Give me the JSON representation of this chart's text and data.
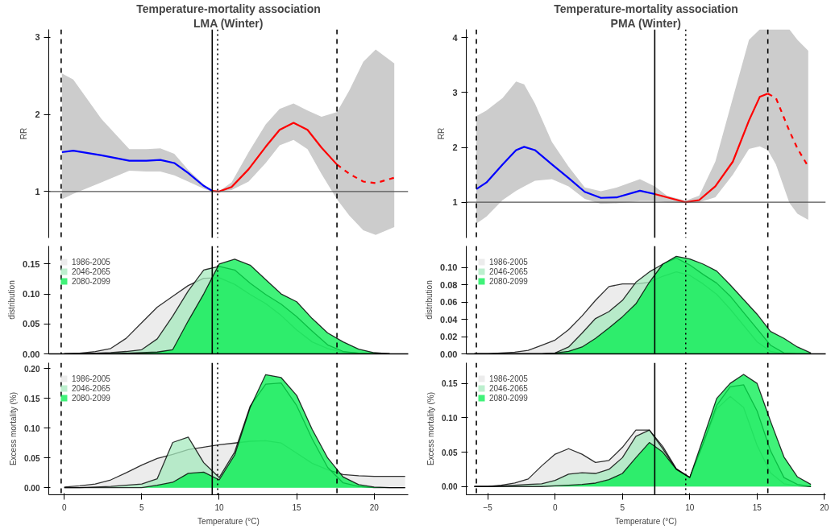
{
  "chart_data": [
    {
      "type": "line",
      "title": "Temperature-mortality association",
      "subtitle": "LMA (Winter)",
      "ylabel": "RR",
      "xlim": [
        -1,
        22.2
      ],
      "ylim": [
        0.4,
        3.1
      ],
      "yticks": [
        1,
        2,
        3
      ],
      "tick_labels": "y",
      "grid": false,
      "legend": false,
      "series": [
        {
          "color": "#0000ff",
          "line_style": "solid",
          "x": [
            -0.15,
            0.58,
            2.4,
            4.2,
            5.3,
            6.2,
            7.1,
            8.0,
            8.96,
            9.55
          ],
          "values": [
            1.51,
            1.53,
            1.47,
            1.4,
            1.4,
            1.41,
            1.37,
            1.24,
            1.08,
            1.01
          ],
          "lower": [
            0.9,
            0.97,
            1.12,
            1.27,
            1.26,
            1.26,
            1.21,
            1.13,
            1.04,
            1.0
          ],
          "upper": [
            2.53,
            2.45,
            1.94,
            1.55,
            1.55,
            1.56,
            1.49,
            1.28,
            1.1,
            1.0
          ]
        },
        {
          "color": "#ff0000",
          "line_style": "solid",
          "x": [
            9.55,
            9.96,
            10.8,
            11.9,
            13.0,
            13.9,
            14.8,
            15.7,
            16.6,
            17.6
          ],
          "values": [
            1.01,
            1.0,
            1.06,
            1.29,
            1.58,
            1.8,
            1.89,
            1.8,
            1.57,
            1.35
          ],
          "lower": [
            1.0,
            1.0,
            1.02,
            1.13,
            1.37,
            1.6,
            1.67,
            1.55,
            1.23,
            0.9
          ],
          "upper": [
            1.0,
            1.0,
            1.12,
            1.51,
            1.87,
            2.07,
            2.14,
            2.05,
            1.97,
            2.03
          ]
        },
        {
          "color": "#ff0000",
          "line_style": "dashed",
          "x": [
            17.6,
            18.4,
            19.3,
            20.1,
            21.3
          ],
          "values": [
            1.35,
            1.23,
            1.13,
            1.11,
            1.18
          ],
          "lower": [
            0.9,
            0.69,
            0.5,
            0.44,
            0.54
          ],
          "upper": [
            2.03,
            2.31,
            2.68,
            2.84,
            2.66
          ]
        }
      ],
      "ref_lines": [
        {
          "axis": "y",
          "value": 1,
          "color": "#555555",
          "line_style": "solid"
        },
        {
          "axis": "x",
          "value": -0.2,
          "color": "#000000",
          "line_style": "dashed"
        },
        {
          "axis": "x",
          "value": 9.55,
          "color": "#000000",
          "line_style": "solid"
        },
        {
          "axis": "x",
          "value": 9.9,
          "color": "#000000",
          "line_style": "dotted"
        },
        {
          "axis": "x",
          "value": 17.6,
          "color": "#000000",
          "line_style": "dashed"
        }
      ]
    },
    {
      "type": "area",
      "ylabel": "distribution",
      "xlim": [
        -1,
        22.2
      ],
      "ylim": [
        0,
        0.18
      ],
      "yticks": [
        {
          "value": 0,
          "label": "0.00"
        },
        {
          "value": 0.05,
          "label": "0.05"
        },
        {
          "value": 0.1,
          "label": "0.10"
        },
        {
          "value": 0.15,
          "label": "0.15"
        }
      ],
      "tick_labels": "y",
      "grid": false,
      "legend": "top left",
      "x": [
        0,
        1,
        2,
        3,
        4,
        5,
        6,
        7,
        8,
        9,
        10,
        11,
        12,
        13,
        14,
        15,
        16,
        17,
        18,
        19,
        20,
        21
      ],
      "series": [
        {
          "name": "1986-2005",
          "color": "#e5e5e5",
          "values": [
            0,
            0.001,
            0.004,
            0.009,
            0.026,
            0.052,
            0.078,
            0.096,
            0.114,
            0.126,
            0.127,
            0.116,
            0.099,
            0.084,
            0.064,
            0.04,
            0.02,
            0.009,
            0.003,
            0.001,
            0,
            0
          ]
        },
        {
          "name": "2046-2065",
          "color": "#a6e9bd",
          "values": [
            0,
            0,
            0.001,
            0.002,
            0.004,
            0.007,
            0.025,
            0.063,
            0.105,
            0.14,
            0.146,
            0.14,
            0.118,
            0.099,
            0.083,
            0.062,
            0.038,
            0.015,
            0.004,
            0.001,
            0,
            0
          ]
        },
        {
          "name": "2080-2099",
          "color": "#00ee4c",
          "values": [
            0,
            0,
            0,
            0,
            0.001,
            0.002,
            0.003,
            0.007,
            0.055,
            0.1,
            0.15,
            0.158,
            0.148,
            0.124,
            0.1,
            0.087,
            0.059,
            0.035,
            0.02,
            0.008,
            0.002,
            0
          ]
        }
      ],
      "ref_lines": [
        {
          "axis": "x",
          "value": -0.2,
          "color": "#000000",
          "line_style": "dashed"
        },
        {
          "axis": "x",
          "value": 9.55,
          "color": "#000000",
          "line_style": "solid"
        },
        {
          "axis": "x",
          "value": 9.9,
          "color": "#000000",
          "line_style": "dotted"
        },
        {
          "axis": "x",
          "value": 17.6,
          "color": "#000000",
          "line_style": "dashed"
        }
      ]
    },
    {
      "type": "area",
      "xlabel": "Temperature (°C)",
      "ylabel": "Excess mortality (%)",
      "xlim": [
        -1,
        22.2
      ],
      "ylim": [
        -0.012,
        0.21
      ],
      "xticks": [
        0,
        5,
        10,
        15,
        20
      ],
      "yticks": [
        {
          "value": 0,
          "label": "0.00"
        },
        {
          "value": 0.05,
          "label": "0.05"
        },
        {
          "value": 0.1,
          "label": "0.10"
        },
        {
          "value": 0.15,
          "label": "0.15"
        },
        {
          "value": 0.2,
          "label": "0.20"
        }
      ],
      "grid": false,
      "legend": "top left",
      "x": [
        0,
        1,
        2,
        3,
        4,
        5,
        6,
        7,
        8,
        9,
        10,
        11,
        12,
        13,
        14,
        15,
        16,
        17,
        18,
        19,
        20,
        21,
        22
      ],
      "series": [
        {
          "name": "1986-2005",
          "color": "#e5e5e5",
          "values": [
            0.001,
            0.003,
            0.006,
            0.013,
            0.025,
            0.038,
            0.049,
            0.056,
            0.064,
            0.068,
            0.072,
            0.075,
            0.078,
            0.079,
            0.075,
            0.058,
            0.041,
            0.03,
            0.022,
            0.02,
            0.019,
            0.019,
            0.019
          ]
        },
        {
          "name": "2046-2065",
          "color": "#a6e9bd",
          "values": [
            0,
            0,
            0.001,
            0.002,
            0.004,
            0.006,
            0.015,
            0.076,
            0.085,
            0.042,
            0.017,
            0.06,
            0.137,
            0.174,
            0.176,
            0.138,
            0.082,
            0.034,
            0.008,
            0.002,
            0,
            0,
            0
          ]
        },
        {
          "name": "2080-2099",
          "color": "#00ee4c",
          "values": [
            0,
            0,
            0,
            0,
            0,
            0,
            0.004,
            0.009,
            0.024,
            0.026,
            0.013,
            0.055,
            0.135,
            0.19,
            0.185,
            0.155,
            0.098,
            0.05,
            0.018,
            0.005,
            0.001,
            0,
            0
          ]
        }
      ],
      "ref_lines": [
        {
          "axis": "x",
          "value": -0.2,
          "color": "#000000",
          "line_style": "dashed"
        },
        {
          "axis": "x",
          "value": 9.55,
          "color": "#000000",
          "line_style": "solid"
        },
        {
          "axis": "x",
          "value": 9.9,
          "color": "#000000",
          "line_style": "dotted"
        },
        {
          "axis": "x",
          "value": 17.6,
          "color": "#000000",
          "line_style": "dashed"
        }
      ]
    },
    {
      "type": "line",
      "title": "Temperature-mortality association",
      "subtitle": "PMA (Winter)",
      "ylabel": "RR",
      "xlim": [
        -6.6,
        20.1
      ],
      "ylim": [
        0.35,
        4.15
      ],
      "yticks": [
        1,
        2,
        3,
        4
      ],
      "tick_labels": "y",
      "grid": false,
      "legend": false,
      "series": [
        {
          "color": "#0000ff",
          "line_style": "solid",
          "x": [
            -5.85,
            -5.1,
            -3.9,
            -2.9,
            -2.3,
            -1.5,
            -0.24,
            1.0,
            2.2,
            3.4,
            4.6,
            6.3,
            7.4
          ],
          "values": [
            1.24,
            1.36,
            1.69,
            1.95,
            2.01,
            1.95,
            1.69,
            1.44,
            1.19,
            1.08,
            1.09,
            1.21,
            1.15
          ],
          "lower": [
            0.61,
            0.74,
            1.04,
            1.21,
            1.29,
            1.39,
            1.42,
            1.29,
            1.06,
            0.97,
            0.98,
            1.02,
            1.02
          ],
          "upper": [
            2.57,
            2.67,
            2.9,
            3.2,
            3.15,
            2.8,
            2.1,
            1.65,
            1.27,
            1.2,
            1.27,
            1.42,
            1.29
          ]
        },
        {
          "color": "#ff0000",
          "line_style": "solid",
          "x": [
            7.4,
            8.3,
            9.7,
            10.7,
            11.9,
            13.2,
            14.4,
            15.2,
            15.8
          ],
          "values": [
            1.15,
            1.09,
            1.0,
            1.04,
            1.29,
            1.74,
            2.49,
            2.92,
            2.98
          ],
          "lower": [
            1.02,
            1.0,
            0.99,
            1.0,
            1.09,
            1.5,
            1.97,
            2.02,
            1.95
          ],
          "upper": [
            1.29,
            1.12,
            1.03,
            1.12,
            1.74,
            2.9,
            3.96,
            4.15,
            4.15
          ]
        },
        {
          "color": "#ff0000",
          "line_style": "dashed",
          "x": [
            15.8,
            16.4,
            17.4,
            18.0,
            18.8
          ],
          "values": [
            2.98,
            2.9,
            2.3,
            1.98,
            1.65
          ],
          "lower": [
            1.95,
            1.69,
            0.99,
            0.79,
            0.68
          ],
          "upper": [
            4.15,
            4.15,
            4.15,
            3.96,
            3.76
          ]
        }
      ],
      "ref_lines": [
        {
          "axis": "y",
          "value": 1,
          "color": "#555555",
          "line_style": "solid"
        },
        {
          "axis": "x",
          "value": -5.85,
          "color": "#000000",
          "line_style": "dashed"
        },
        {
          "axis": "x",
          "value": 7.4,
          "color": "#000000",
          "line_style": "solid"
        },
        {
          "axis": "x",
          "value": 9.7,
          "color": "#000000",
          "line_style": "dotted"
        },
        {
          "axis": "x",
          "value": 15.8,
          "color": "#000000",
          "line_style": "dashed"
        }
      ]
    },
    {
      "type": "area",
      "ylabel": "distribution",
      "xlim": [
        -6.6,
        20.1
      ],
      "ylim": [
        0,
        0.125
      ],
      "yticks": [
        {
          "value": 0,
          "label": "0.00"
        },
        {
          "value": 0.02,
          "label": "0.02"
        },
        {
          "value": 0.04,
          "label": "0.04"
        },
        {
          "value": 0.06,
          "label": "0.06"
        },
        {
          "value": 0.08,
          "label": "0.08"
        },
        {
          "value": 0.1,
          "label": "0.10"
        }
      ],
      "tick_labels": "y",
      "grid": false,
      "legend": "top left",
      "x": [
        -6,
        -5,
        -4,
        -3,
        -2,
        -1,
        0,
        1,
        2,
        3,
        4,
        5,
        6,
        7,
        8,
        9,
        10,
        11,
        12,
        13,
        14,
        15,
        16,
        17,
        18,
        19
      ],
      "series": [
        {
          "name": "1986-2005",
          "color": "#e5e5e5",
          "values": [
            0,
            0,
            0.001,
            0.002,
            0.004,
            0.01,
            0.016,
            0.028,
            0.044,
            0.062,
            0.078,
            0.081,
            0.081,
            0.083,
            0.09,
            0.095,
            0.091,
            0.081,
            0.069,
            0.052,
            0.033,
            0.014,
            0.003,
            0,
            0,
            0
          ]
        },
        {
          "name": "2046-2065",
          "color": "#a6e9bd",
          "values": [
            0,
            0,
            0,
            0,
            0,
            0,
            0.001,
            0.008,
            0.024,
            0.041,
            0.049,
            0.062,
            0.083,
            0.095,
            0.104,
            0.111,
            0.103,
            0.092,
            0.082,
            0.067,
            0.048,
            0.029,
            0.01,
            0.001,
            0,
            0
          ]
        },
        {
          "name": "2080-2099",
          "color": "#00ee4c",
          "values": [
            0,
            0,
            0,
            0,
            0,
            0,
            0.001,
            0.003,
            0.008,
            0.018,
            0.03,
            0.043,
            0.058,
            0.083,
            0.104,
            0.113,
            0.11,
            0.104,
            0.096,
            0.08,
            0.063,
            0.046,
            0.026,
            0.018,
            0.008,
            0.001
          ]
        }
      ],
      "ref_lines": [
        {
          "axis": "x",
          "value": -5.85,
          "color": "#000000",
          "line_style": "dashed"
        },
        {
          "axis": "x",
          "value": 7.4,
          "color": "#000000",
          "line_style": "solid"
        },
        {
          "axis": "x",
          "value": 9.7,
          "color": "#000000",
          "line_style": "dotted"
        },
        {
          "axis": "x",
          "value": 15.8,
          "color": "#000000",
          "line_style": "dashed"
        }
      ]
    },
    {
      "type": "area",
      "xlabel": "Temperature (°C)",
      "ylabel": "Excess mortality (%)",
      "xlim": [
        -6.6,
        20.1
      ],
      "ylim": [
        -0.012,
        0.18
      ],
      "xticks": [
        -5,
        0,
        5,
        10,
        15,
        20
      ],
      "yticks": [
        {
          "value": 0,
          "label": "0.00"
        },
        {
          "value": 0.05,
          "label": "0.05"
        },
        {
          "value": 0.1,
          "label": "0.10"
        },
        {
          "value": 0.15,
          "label": "0.15"
        }
      ],
      "grid": false,
      "legend": "top left",
      "x": [
        -6,
        -5,
        -4,
        -3,
        -2,
        -1,
        0,
        1,
        2,
        3,
        4,
        5,
        6,
        7,
        8,
        9,
        10,
        11,
        12,
        13,
        14,
        15,
        16,
        17,
        18,
        19
      ],
      "series": [
        {
          "name": "1986-2005",
          "color": "#e5e5e5",
          "values": [
            0,
            0,
            0.002,
            0.005,
            0.011,
            0.03,
            0.047,
            0.055,
            0.047,
            0.035,
            0.038,
            0.057,
            0.082,
            0.082,
            0.058,
            0.026,
            0.013,
            0.062,
            0.113,
            0.131,
            0.115,
            0.06,
            0.02,
            0.004,
            0.001,
            0
          ]
        },
        {
          "name": "2046-2065",
          "color": "#a6e9bd",
          "values": [
            0,
            0,
            0.001,
            0.002,
            0.003,
            0.004,
            0.009,
            0.018,
            0.02,
            0.019,
            0.025,
            0.042,
            0.073,
            0.082,
            0.055,
            0.025,
            0.013,
            0.063,
            0.118,
            0.145,
            0.148,
            0.11,
            0.052,
            0.013,
            0.003,
            0
          ]
        },
        {
          "name": "2080-2099",
          "color": "#00ee4c",
          "values": [
            0,
            0,
            0,
            0,
            0,
            0,
            0.001,
            0.002,
            0.003,
            0.005,
            0.01,
            0.019,
            0.042,
            0.064,
            0.05,
            0.025,
            0.013,
            0.07,
            0.128,
            0.15,
            0.163,
            0.15,
            0.095,
            0.043,
            0.014,
            0.003
          ]
        }
      ],
      "ref_lines": [
        {
          "axis": "x",
          "value": -5.85,
          "color": "#000000",
          "line_style": "dashed"
        },
        {
          "axis": "x",
          "value": 7.4,
          "color": "#000000",
          "line_style": "solid"
        },
        {
          "axis": "x",
          "value": 9.7,
          "color": "#000000",
          "line_style": "dotted"
        },
        {
          "axis": "x",
          "value": 15.8,
          "color": "#000000",
          "line_style": "dashed"
        }
      ]
    }
  ]
}
